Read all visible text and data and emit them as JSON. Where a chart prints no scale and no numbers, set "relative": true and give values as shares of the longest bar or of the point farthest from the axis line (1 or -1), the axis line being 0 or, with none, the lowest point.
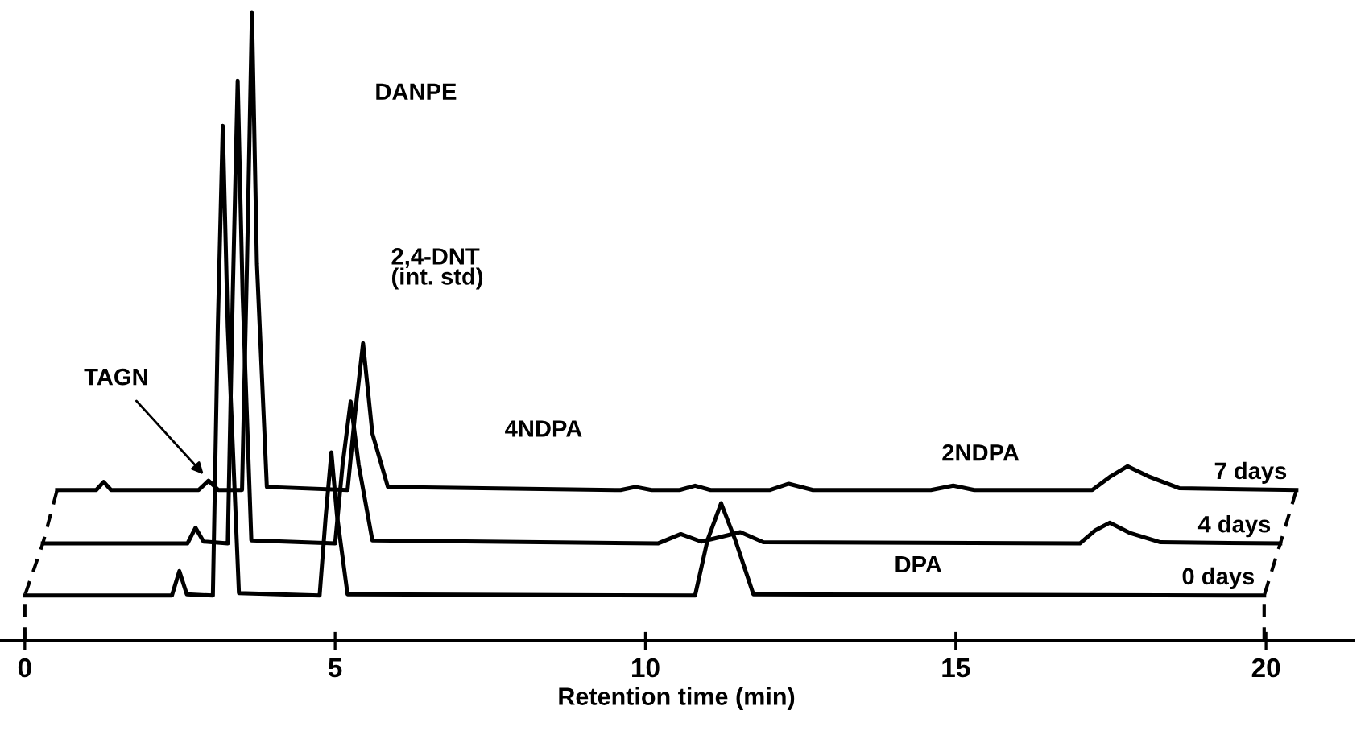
{
  "chart_data": {
    "type": "line",
    "relative": true,
    "xlabel": "Retention time (min)",
    "xlim": [
      -0.4,
      21.4
    ],
    "xticks": [
      0,
      5,
      10,
      15,
      20
    ],
    "grid": false,
    "legend": false,
    "marker": "none",
    "line_style": "solid",
    "tick_labels": "x",
    "series": [
      {
        "name": "7 days",
        "color": "#000000",
        "x": [
          0.52,
          1.15,
          1.27,
          1.39,
          2.8,
          2.96,
          3.12,
          3.5,
          3.58,
          3.66,
          3.74,
          3.9,
          5.2,
          5.32,
          5.45,
          5.6,
          5.85,
          9.6,
          9.84,
          10.1,
          10.55,
          10.8,
          11.05,
          12.0,
          12.31,
          12.7,
          14.6,
          14.96,
          15.3,
          17.2,
          17.5,
          17.77,
          18.1,
          18.6,
          20.49
        ],
        "values": [
          0.24,
          0.24,
          0.253,
          0.24,
          0.24,
          0.255,
          0.24,
          0.24,
          0.6,
          1.0,
          0.6,
          0.245,
          0.24,
          0.36,
          0.474,
          0.33,
          0.245,
          0.24,
          0.245,
          0.24,
          0.24,
          0.247,
          0.24,
          0.24,
          0.25,
          0.24,
          0.24,
          0.247,
          0.24,
          0.24,
          0.262,
          0.278,
          0.262,
          0.243,
          0.24
        ]
      },
      {
        "name": "4 days",
        "color": "#000000",
        "x": [
          0.29,
          2.62,
          2.75,
          2.88,
          3.27,
          3.35,
          3.43,
          3.51,
          3.65,
          5.0,
          5.12,
          5.25,
          5.38,
          5.6,
          10.2,
          10.57,
          10.9,
          11.2,
          11.53,
          11.9,
          17.0,
          17.25,
          17.48,
          17.8,
          18.3,
          20.23
        ],
        "values": [
          0.155,
          0.155,
          0.18,
          0.158,
          0.155,
          0.55,
          0.892,
          0.55,
          0.16,
          0.155,
          0.28,
          0.381,
          0.28,
          0.16,
          0.155,
          0.17,
          0.158,
          0.165,
          0.173,
          0.157,
          0.155,
          0.176,
          0.188,
          0.172,
          0.157,
          0.155
        ]
      },
      {
        "name": "0 days",
        "color": "#000000",
        "x": [
          0.0,
          2.37,
          2.49,
          2.61,
          3.03,
          3.11,
          3.19,
          3.27,
          3.45,
          4.75,
          4.85,
          4.94,
          5.03,
          5.2,
          10.8,
          11.0,
          11.22,
          11.45,
          11.74,
          19.97
        ],
        "values": [
          0.072,
          0.072,
          0.111,
          0.074,
          0.072,
          0.5,
          0.82,
          0.5,
          0.076,
          0.072,
          0.2,
          0.3,
          0.2,
          0.074,
          0.072,
          0.16,
          0.219,
          0.16,
          0.074,
          0.072
        ]
      }
    ],
    "annotations": [
      "DANPE",
      {
        "text": "TAGN",
        "x": 2.96,
        "y": 0.255
      },
      "2,4-DNT\n(int. std)",
      "4NDPA",
      "DPA",
      "2NDPA"
    ]
  }
}
